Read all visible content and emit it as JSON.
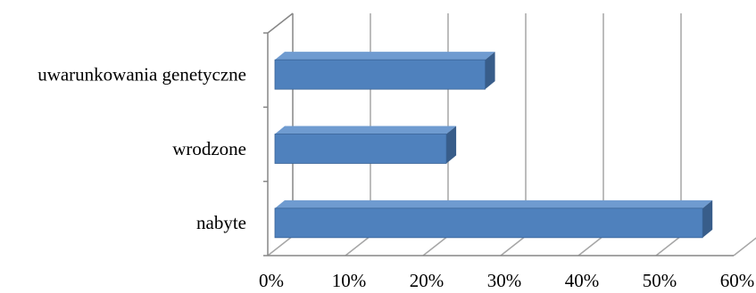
{
  "chart_data": {
    "type": "bar",
    "orientation": "horizontal",
    "style": "3d",
    "categories": [
      "uwarunkowania genetyczne",
      "wrodzone",
      "nabyte"
    ],
    "values": [
      28,
      23,
      56
    ],
    "x_ticks": [
      "0%",
      "10%",
      "20%",
      "30%",
      "40%",
      "50%",
      "60%"
    ],
    "xlim": [
      0,
      60
    ],
    "grid": true,
    "legend": "none",
    "colors": {
      "bar_front": "#4f81bd",
      "bar_top": "#6f9bd0",
      "bar_side": "#385d8a",
      "grid": "#a6a6a6"
    }
  }
}
